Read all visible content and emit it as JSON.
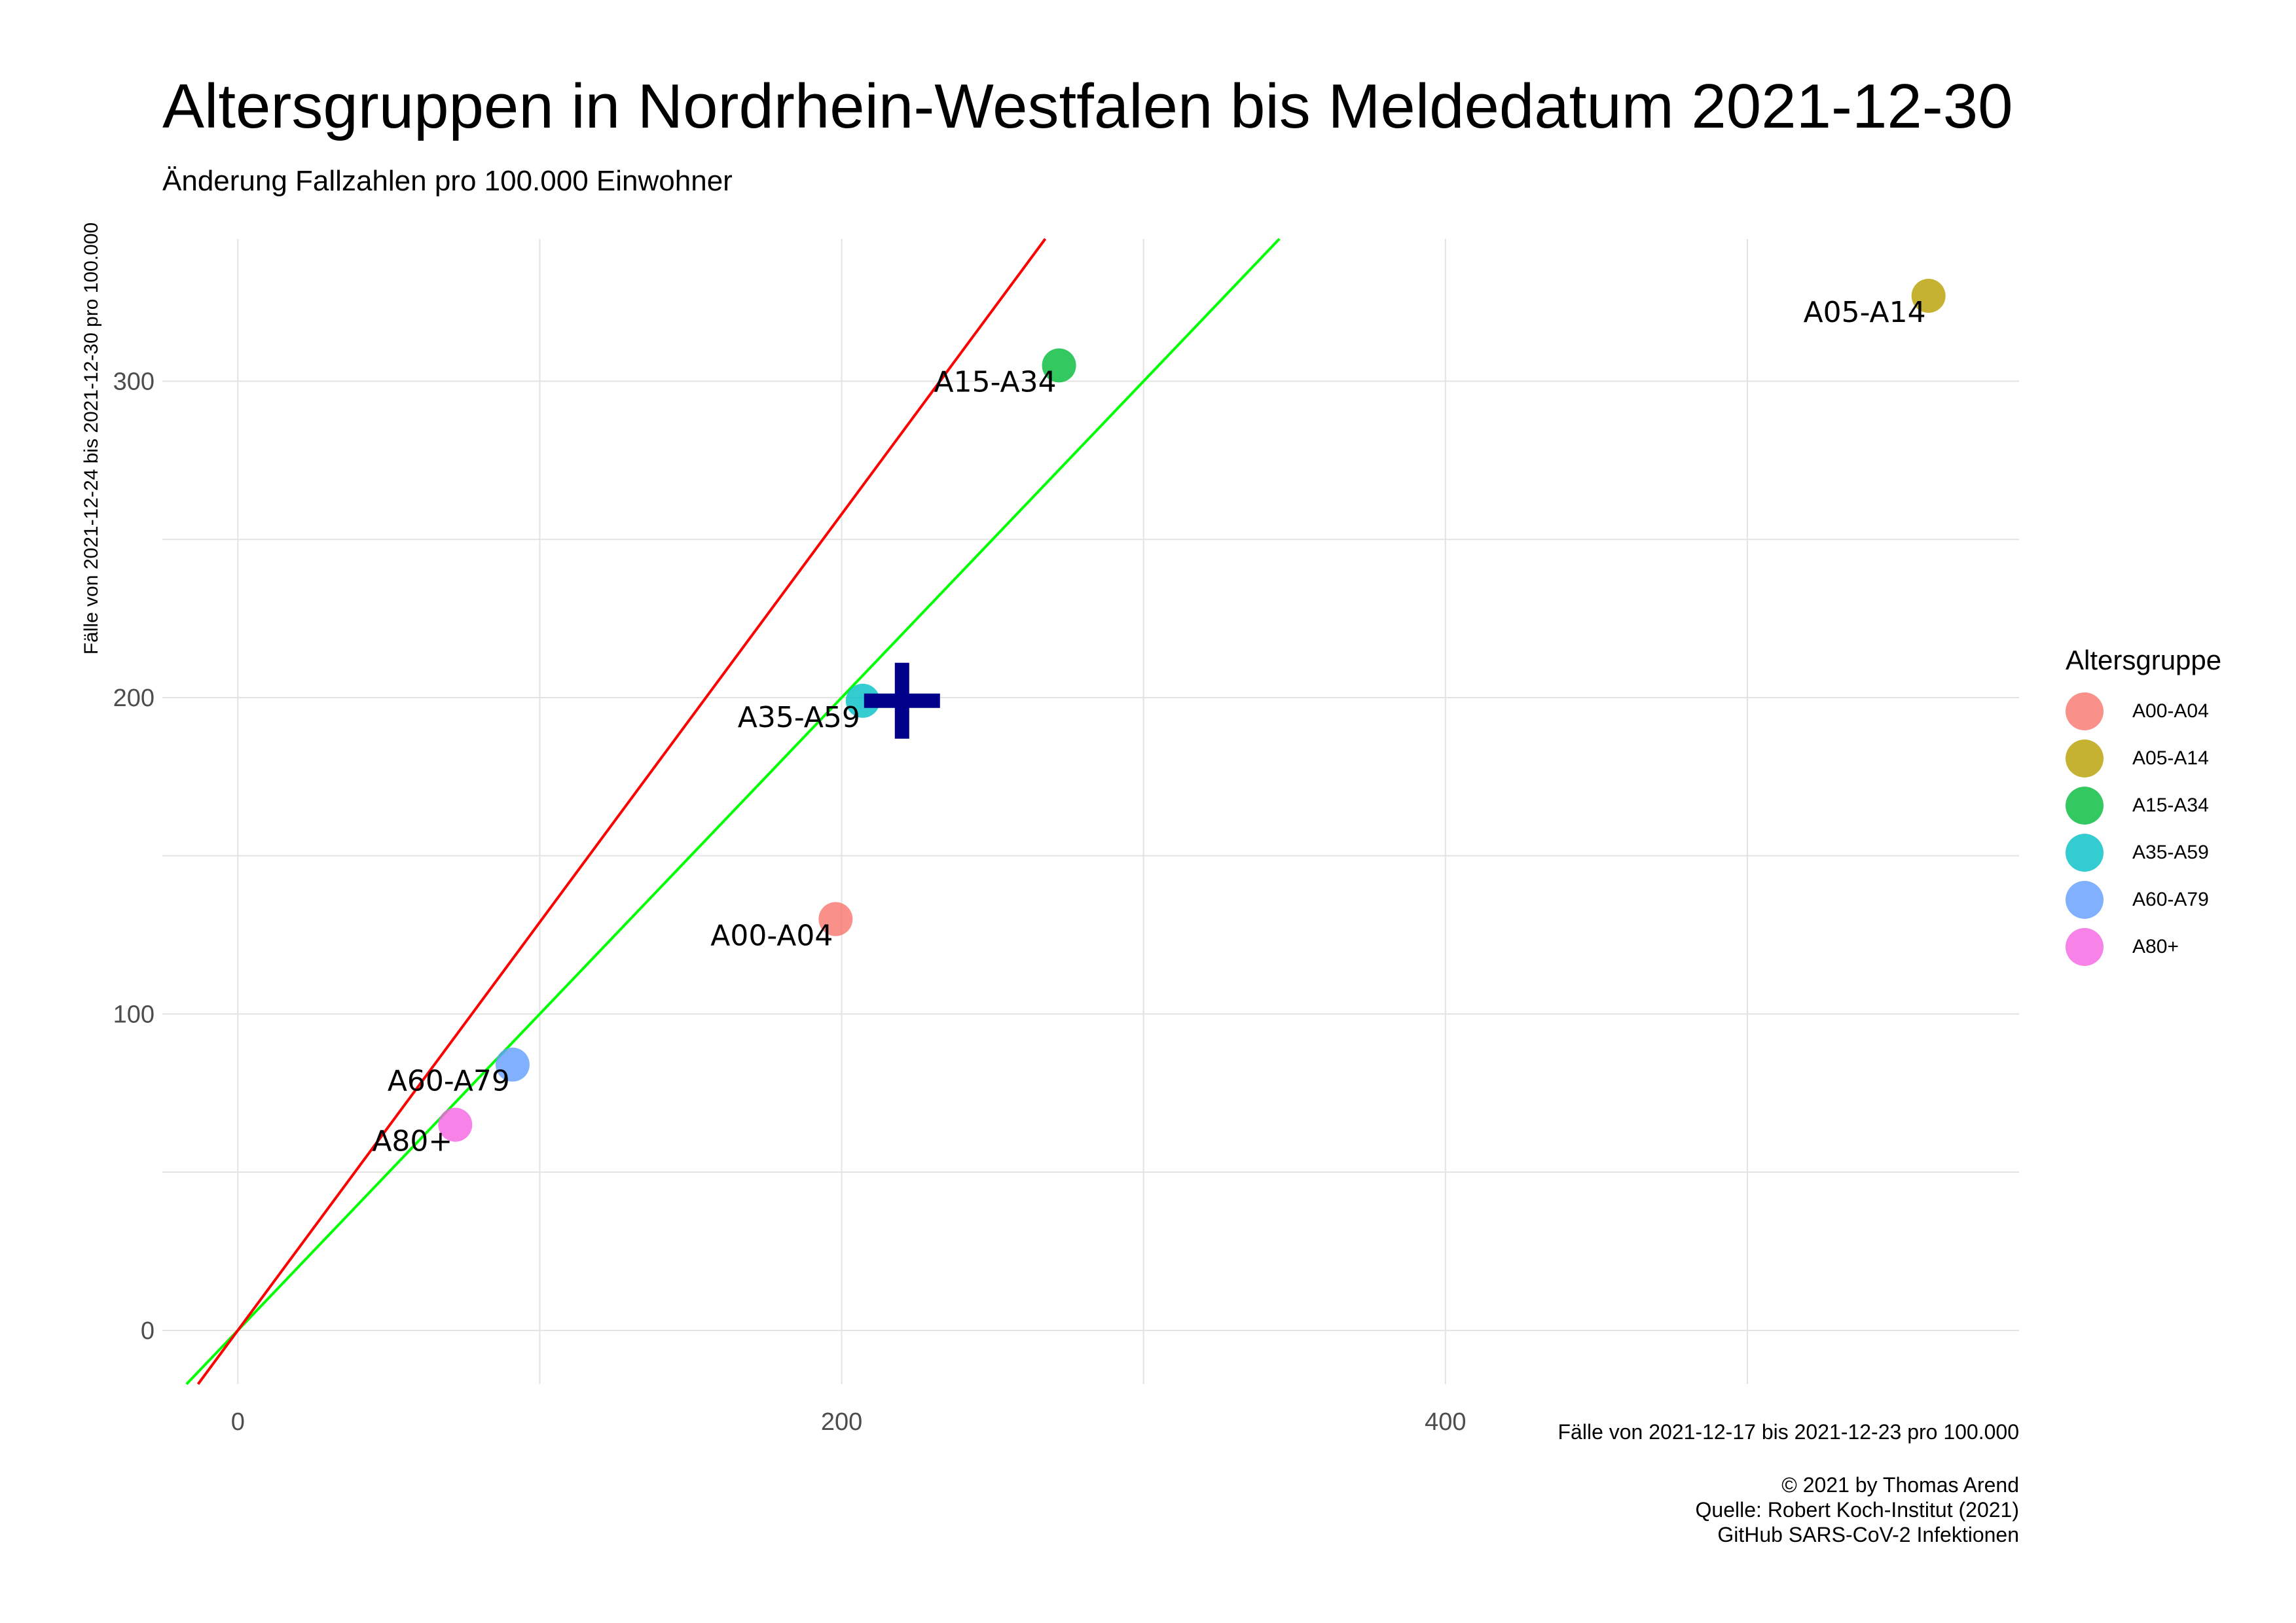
{
  "title": "Altersgruppen in Nordrhein-Westfalen bis Meldedatum 2021-12-30",
  "subtitle": "Änderung Fallzahlen pro 100.000 Einwohner",
  "caption": [
    "© 2021 by Thomas Arend",
    "Quelle: Robert Koch-Institut (2021)",
    "GitHub SARS-CoV-2 Infektionen"
  ],
  "chart_data": {
    "type": "scatter",
    "xlabel": "Fälle von 2021-12-17 bis 2021-12-23 pro 100.000",
    "ylabel": "Fälle von 2021-12-24 bis 2021-12-30 pro 100.000",
    "xlim": [
      -25,
      590
    ],
    "ylim": [
      -17,
      345
    ],
    "x_ticks": [
      0,
      200,
      400
    ],
    "y_ticks": [
      0,
      100,
      200,
      300
    ],
    "grid": true,
    "legend_title": "Altersgruppe",
    "legend_position": "right",
    "points": [
      {
        "label": "A00-A04",
        "x": 198,
        "y": 130,
        "color": "#F8766D"
      },
      {
        "label": "A05-A14",
        "x": 560,
        "y": 327,
        "color": "#B79F00"
      },
      {
        "label": "A15-A34",
        "x": 272,
        "y": 305,
        "color": "#00BA38"
      },
      {
        "label": "A35-A59",
        "x": 207,
        "y": 199,
        "color": "#00BFC4"
      },
      {
        "label": "A60-A79",
        "x": 91,
        "y": 84,
        "color": "#619CFF"
      },
      {
        "label": "A80+",
        "x": 72,
        "y": 65,
        "color": "#F564E3"
      }
    ],
    "mean_marker": {
      "x": 220,
      "y": 199,
      "color": "#00008B"
    },
    "reference_lines": [
      {
        "slope": 1,
        "intercept": 0,
        "color": "#00FF00"
      },
      {
        "slope": 1.29,
        "intercept": 0,
        "color": "#FF0000"
      }
    ]
  }
}
